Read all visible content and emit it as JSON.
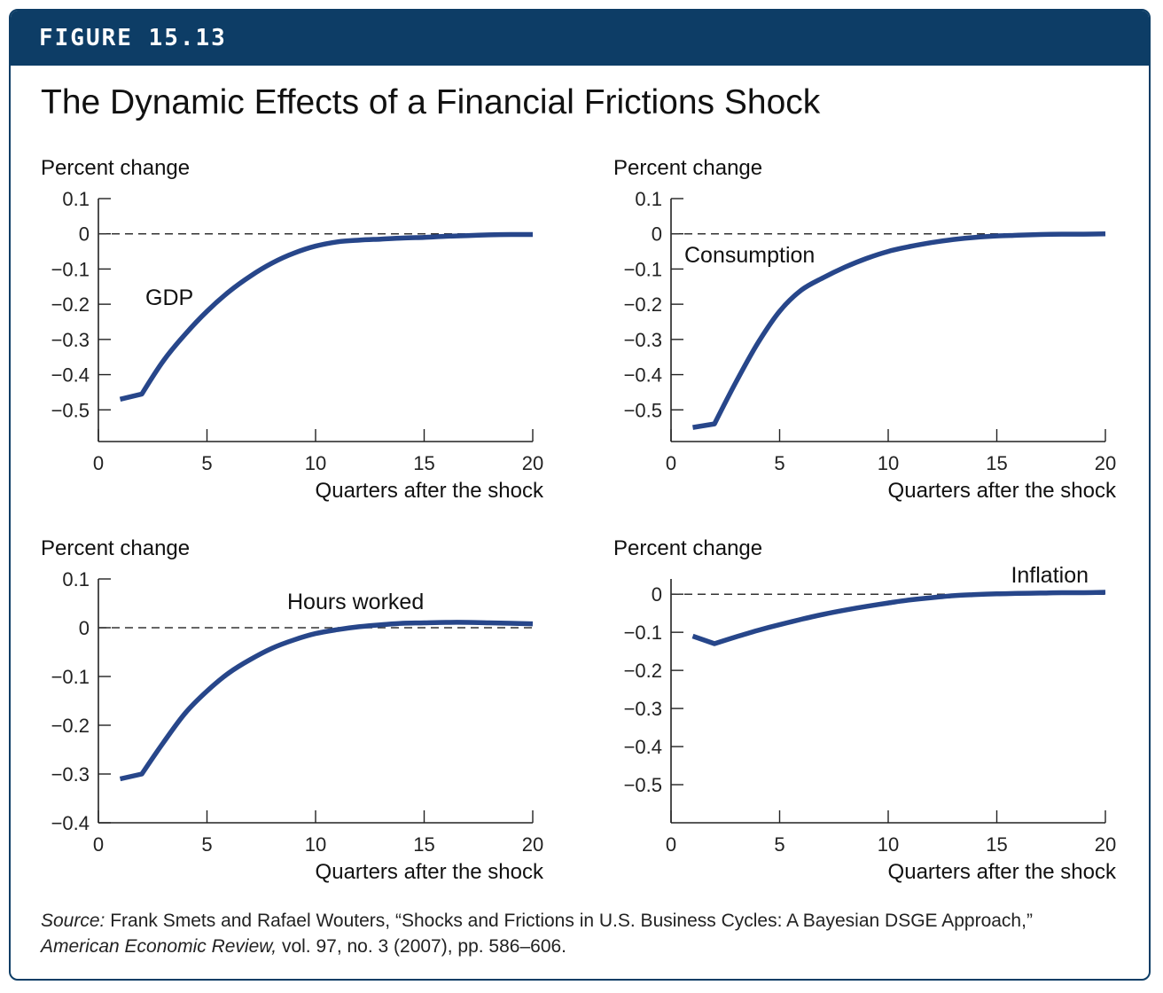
{
  "figure_label": "FIGURE 15.13",
  "title": "The Dynamic Effects of a Financial Frictions Shock",
  "source": {
    "prefix": "Source:",
    "authors": " Frank Smets and Rafael Wouters, “Shocks and Frictions in U.S. Business Cycles: A Bayesian DSGE Approach,” ",
    "journal": "American Economic Review,",
    "rest": " vol. 97, no. 3 (2007), pp. 586–606."
  },
  "colors": {
    "header": "#0d3d66",
    "line": "#27468a"
  },
  "chart_data": [
    {
      "type": "line",
      "ylabel": "Percent change",
      "xlabel": "Quarters after the shock",
      "xlim": [
        0,
        20
      ],
      "ylim": [
        -0.59,
        0.1
      ],
      "xticks": [
        0,
        5,
        10,
        15,
        20
      ],
      "xtick_labels": [
        "0",
        "5",
        "10",
        "15",
        "20"
      ],
      "yticks": [
        0.1,
        0,
        -0.1,
        -0.2,
        -0.3,
        -0.4,
        -0.5
      ],
      "ytick_labels": [
        "0.1",
        "0",
        "−0.1",
        "−0.2",
        "−0.3",
        "−0.4",
        "−0.5"
      ],
      "zero_line": "dashed",
      "series": [
        {
          "name": "GDP",
          "x": [
            1,
            2,
            3,
            4,
            5,
            6,
            7,
            8,
            9,
            10,
            11,
            12,
            13,
            14,
            15,
            16,
            17,
            18,
            19,
            20
          ],
          "y": [
            -0.47,
            -0.455,
            -0.36,
            -0.285,
            -0.22,
            -0.165,
            -0.12,
            -0.083,
            -0.055,
            -0.035,
            -0.023,
            -0.018,
            -0.015,
            -0.012,
            -0.01,
            -0.007,
            -0.005,
            -0.003,
            -0.002,
            -0.002
          ]
        }
      ]
    },
    {
      "type": "line",
      "ylabel": "Percent change",
      "xlabel": "Quarters after the shock",
      "xlim": [
        0,
        20
      ],
      "ylim": [
        -0.59,
        0.1
      ],
      "xticks": [
        0,
        5,
        10,
        15,
        20
      ],
      "xtick_labels": [
        "0",
        "5",
        "10",
        "15",
        "20"
      ],
      "yticks": [
        0.1,
        0,
        -0.1,
        -0.2,
        -0.3,
        -0.4,
        -0.5
      ],
      "ytick_labels": [
        "0.1",
        "0",
        "−0.1",
        "−0.2",
        "−0.3",
        "−0.4",
        "−0.5"
      ],
      "zero_line": "dashed",
      "series": [
        {
          "name": "Consumption",
          "x": [
            1,
            2,
            3,
            4,
            5,
            6,
            7,
            8,
            9,
            10,
            11,
            12,
            13,
            14,
            15,
            16,
            17,
            18,
            19,
            20
          ],
          "y": [
            -0.55,
            -0.54,
            -0.42,
            -0.31,
            -0.22,
            -0.16,
            -0.125,
            -0.095,
            -0.07,
            -0.05,
            -0.036,
            -0.025,
            -0.016,
            -0.01,
            -0.006,
            -0.004,
            -0.002,
            -0.001,
            -0.001,
            0.0
          ]
        }
      ]
    },
    {
      "type": "line",
      "ylabel": "Percent change",
      "xlabel": "Quarters after the shock",
      "xlim": [
        0,
        20
      ],
      "ylim": [
        -0.4,
        0.1
      ],
      "xticks": [
        0,
        5,
        10,
        15,
        20
      ],
      "xtick_labels": [
        "0",
        "5",
        "10",
        "15",
        "20"
      ],
      "yticks": [
        0.1,
        0,
        -0.1,
        -0.2,
        -0.3,
        -0.4
      ],
      "ytick_labels": [
        "0.1",
        "0",
        "−0.1",
        "−0.2",
        "−0.3",
        "−0.4"
      ],
      "zero_line": "dashed",
      "series": [
        {
          "name": "Hours worked",
          "x": [
            1,
            2,
            3,
            4,
            5,
            6,
            7,
            8,
            9,
            10,
            11,
            12,
            13,
            14,
            15,
            16,
            17,
            18,
            19,
            20
          ],
          "y": [
            -0.31,
            -0.3,
            -0.235,
            -0.175,
            -0.13,
            -0.093,
            -0.065,
            -0.042,
            -0.025,
            -0.012,
            -0.004,
            0.002,
            0.006,
            0.009,
            0.01,
            0.011,
            0.011,
            0.01,
            0.009,
            0.008
          ]
        }
      ]
    },
    {
      "type": "line",
      "ylabel": "Percent change",
      "xlabel": "Quarters after the shock",
      "xlim": [
        0,
        20
      ],
      "ylim": [
        -0.6,
        0.04
      ],
      "xticks": [
        0,
        5,
        10,
        15,
        20
      ],
      "xtick_labels": [
        "0",
        "5",
        "10",
        "15",
        "20"
      ],
      "yticks": [
        0,
        -0.1,
        -0.2,
        -0.3,
        -0.4,
        -0.5
      ],
      "ytick_labels": [
        "0",
        "−0.1",
        "−0.2",
        "−0.3",
        "−0.4",
        "−0.5"
      ],
      "zero_line": "dashed",
      "series": [
        {
          "name": "Inflation",
          "x": [
            1,
            2,
            3,
            4,
            5,
            6,
            7,
            8,
            9,
            10,
            11,
            12,
            13,
            14,
            15,
            16,
            17,
            18,
            19,
            20
          ],
          "y": [
            -0.11,
            -0.13,
            -0.112,
            -0.095,
            -0.08,
            -0.066,
            -0.053,
            -0.042,
            -0.032,
            -0.023,
            -0.015,
            -0.009,
            -0.004,
            -0.001,
            0.001,
            0.002,
            0.003,
            0.004,
            0.004,
            0.005
          ]
        }
      ]
    }
  ]
}
